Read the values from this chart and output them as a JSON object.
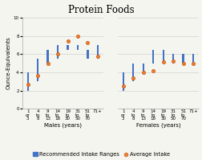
{
  "title": "Protein Foods",
  "ylabel": "Ounce-Equivalents",
  "xlabel_male": "Males (years)",
  "xlabel_female": "Females (years)",
  "ylim": [
    0,
    10
  ],
  "yticks": [
    0,
    2,
    4,
    6,
    8,
    10
  ],
  "male_ranges": [
    [
      2.0,
      4.0
    ],
    [
      3.0,
      5.5
    ],
    [
      5.0,
      6.5
    ],
    [
      5.5,
      7.0
    ],
    [
      6.5,
      7.0
    ],
    [
      6.5,
      7.0
    ],
    [
      5.5,
      6.5
    ],
    [
      5.5,
      7.0
    ]
  ],
  "male_avg": [
    2.7,
    3.6,
    5.0,
    6.0,
    7.4,
    8.0,
    7.3,
    5.8
  ],
  "female_ranges": [
    [
      2.0,
      4.0
    ],
    [
      3.0,
      5.0
    ],
    [
      4.0,
      5.0
    ],
    [
      5.0,
      6.5
    ],
    [
      5.0,
      6.5
    ],
    [
      5.0,
      6.0
    ],
    [
      5.0,
      6.0
    ],
    [
      5.0,
      6.0
    ]
  ],
  "female_avg": [
    2.5,
    3.4,
    4.0,
    4.2,
    5.1,
    5.2,
    5.0,
    5.0
  ],
  "bar_color": "#4472c4",
  "dot_color": "#ed7d31",
  "dot_edge_color": "#c55a11",
  "bar_width": 0.18,
  "background_color": "#f5f5f0",
  "plot_bg": "#f5f5f0",
  "grid_color": "#d0d0d0",
  "title_fontsize": 8.5,
  "label_fontsize": 5.0,
  "tick_fontsize": 4.0,
  "legend_fontsize": 4.8
}
